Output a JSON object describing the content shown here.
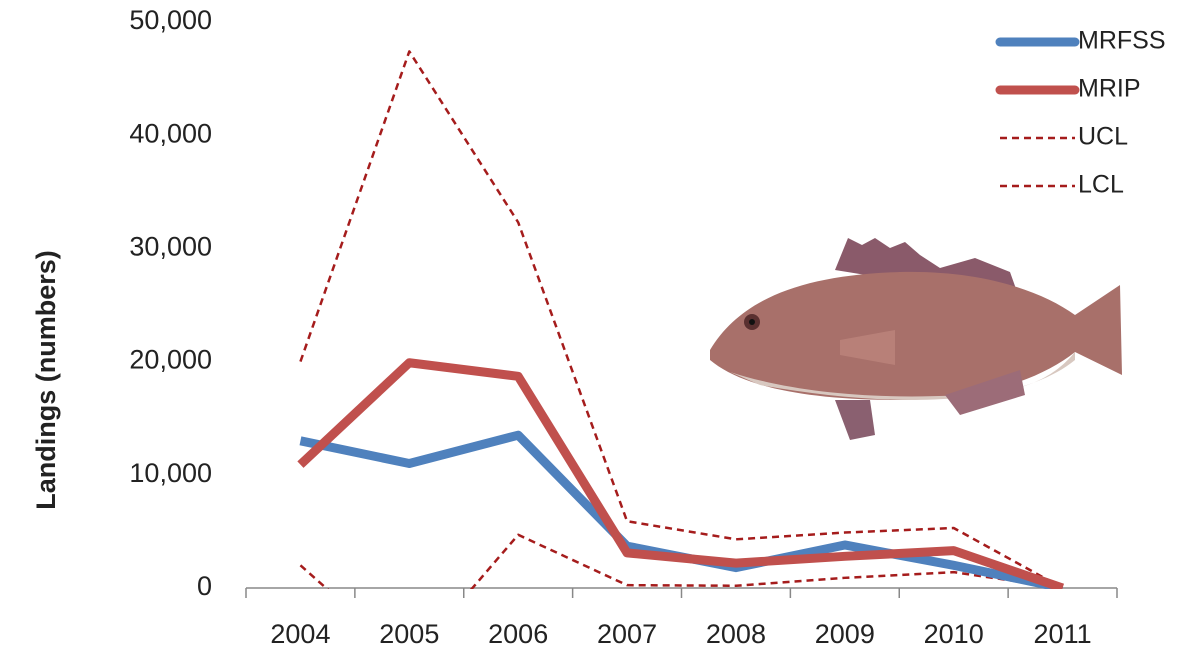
{
  "chart_data": {
    "type": "line",
    "y_label": "Landings (numbers)",
    "categories": [
      "2004",
      "2005",
      "2006",
      "2007",
      "2008",
      "2009",
      "2010",
      "2011"
    ],
    "series": [
      {
        "name": "MRFSS",
        "color": "#4f81bd",
        "style": "solid",
        "values": [
          13000,
          11000,
          13500,
          3700,
          1800,
          3800,
          2000,
          0
        ]
      },
      {
        "name": "MRIP",
        "color": "#c0504d",
        "style": "solid",
        "values": [
          10900,
          19900,
          18700,
          3100,
          2200,
          2800,
          3300,
          0
        ]
      },
      {
        "name": "UCL",
        "color": "#a51c1c",
        "style": "dashed",
        "values": [
          20000,
          47400,
          32300,
          5900,
          4300,
          4900,
          5300,
          0
        ]
      },
      {
        "name": "LCL",
        "color": "#a51c1c",
        "style": "dashed",
        "values": [
          2000,
          -6500,
          4700,
          250,
          200,
          900,
          1400,
          0
        ]
      }
    ],
    "ylim": [
      0,
      50000
    ],
    "yticks": [
      0,
      {
        "value": 10000,
        "label": "10,000"
      },
      {
        "value": 20000,
        "label": "20,000"
      },
      {
        "value": 30000,
        "label": "30,000"
      },
      {
        "value": 40000,
        "label": "40,000"
      },
      {
        "value": 50000,
        "label": "50,000"
      }
    ],
    "legend": "top-right",
    "grid": false
  }
}
